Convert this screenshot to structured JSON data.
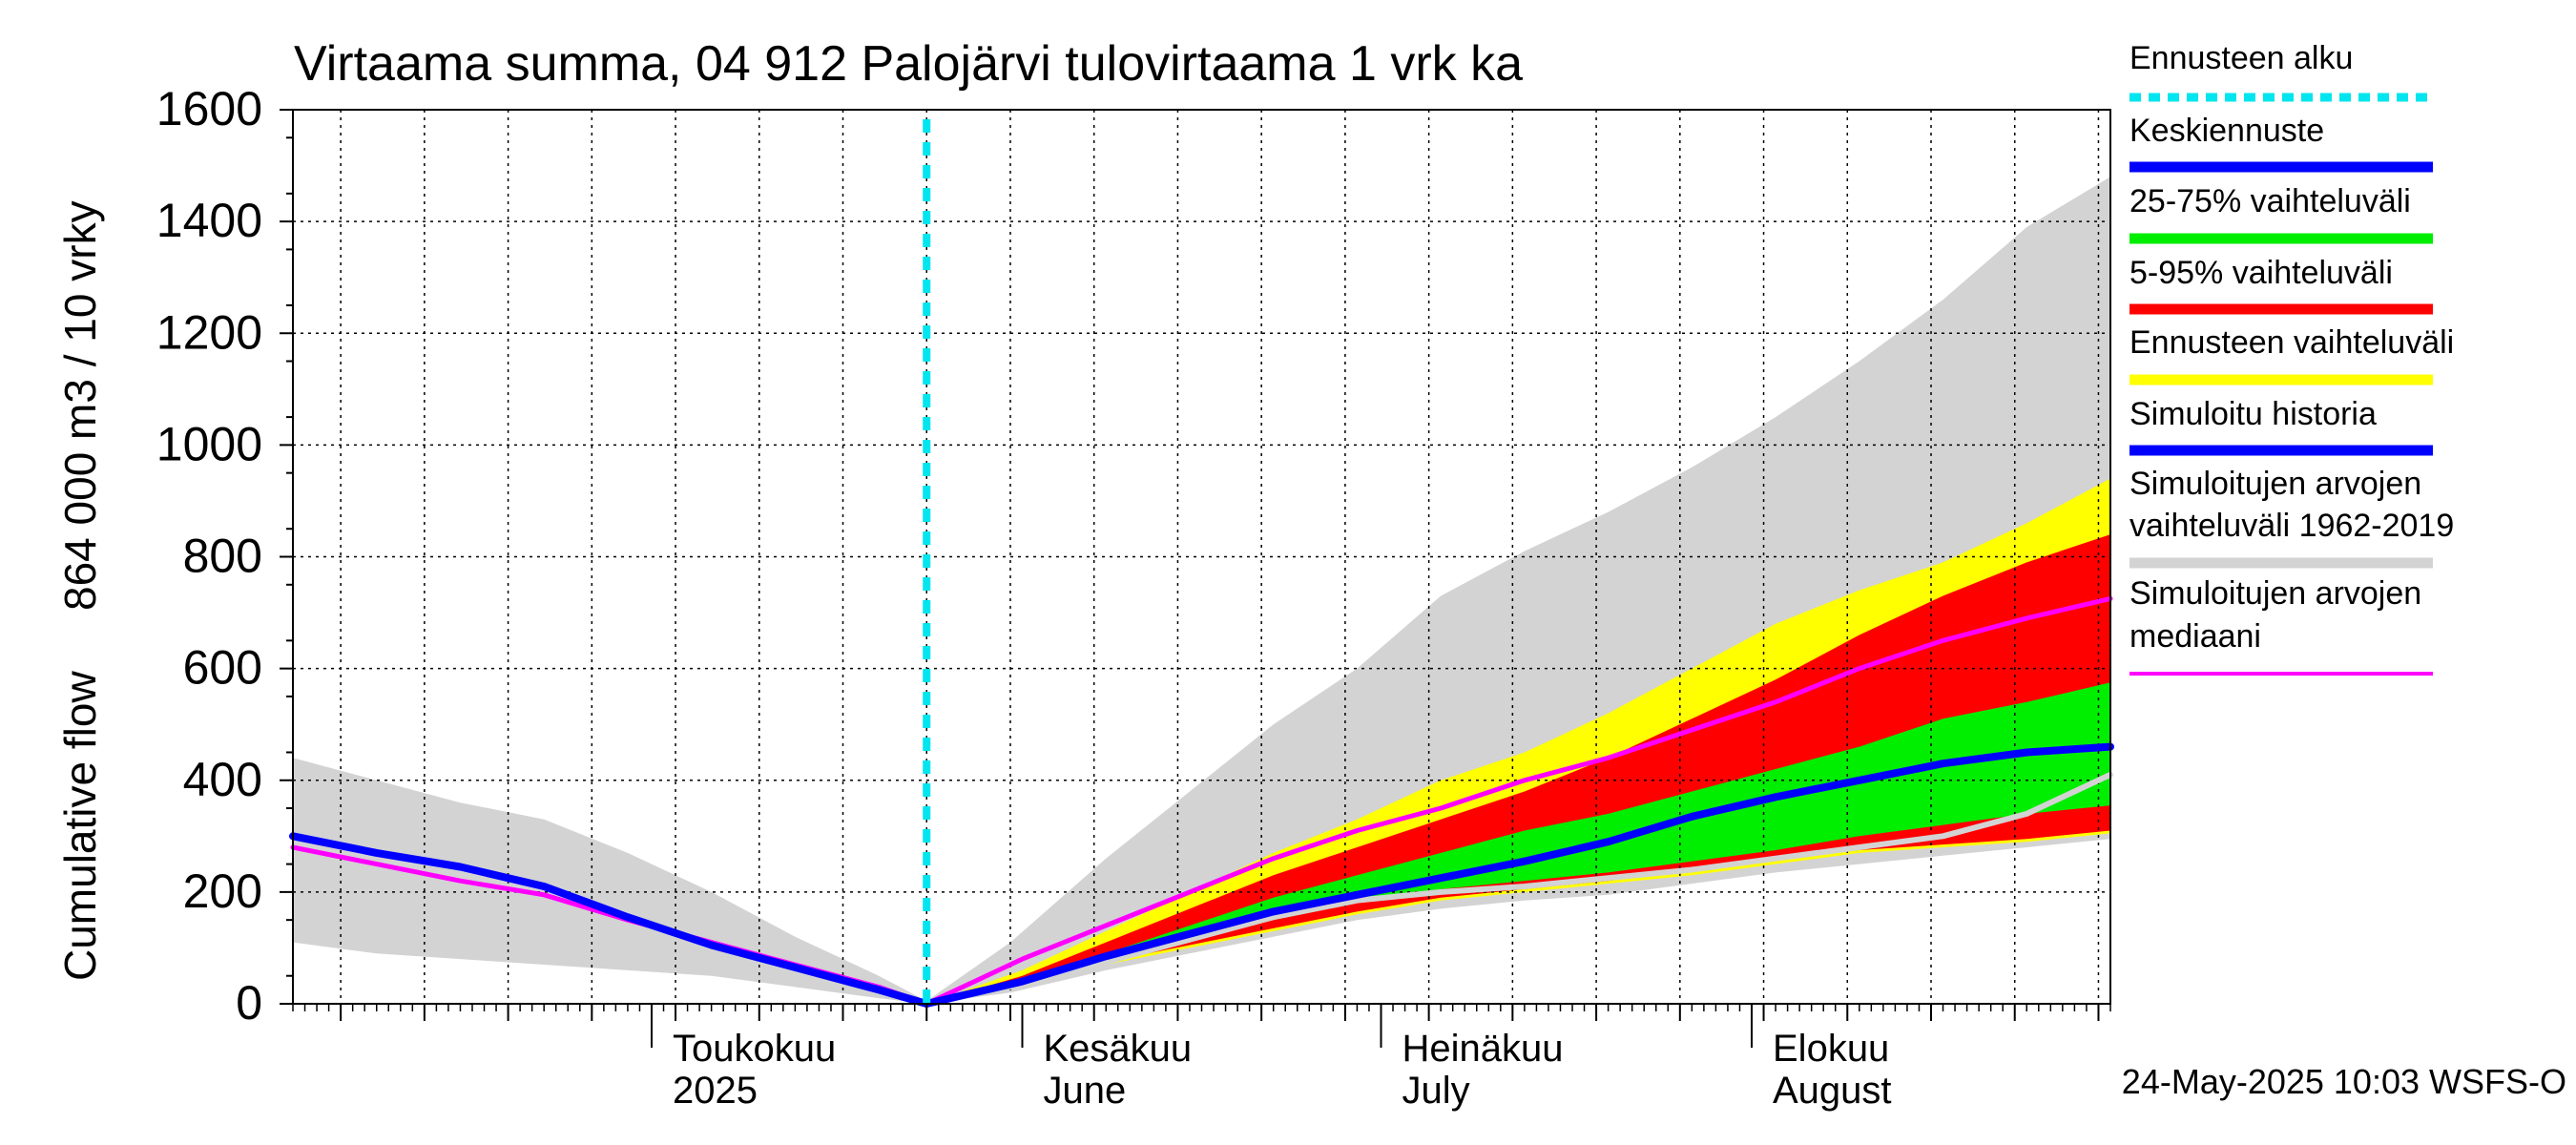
{
  "chart_data": {
    "type": "area",
    "title": "Virtaama summa, 04 912 Palojärvi tulovirtaama 1 vrk ka",
    "ylabel_fi": "Cumulative flow",
    "ylabel_unit": "864 000 m3 / 10 vrky",
    "ylim": [
      0,
      1600
    ],
    "y_ticks": [
      0,
      200,
      400,
      600,
      800,
      1000,
      1200,
      1400,
      1600
    ],
    "y_tick_labels": [
      "0",
      "200",
      "400",
      "600",
      "800",
      "1000",
      "1200",
      "1400",
      "1600"
    ],
    "x_range": [
      "2025-04-01",
      "2025-08-31"
    ],
    "grid": true,
    "forecast_start": "2025-05-24",
    "month_labels": [
      {
        "date": "2025-05-01",
        "line1": "Toukokuu",
        "line2": "2025"
      },
      {
        "date": "2025-06-01",
        "line1": "Kesäkuu",
        "line2": "June"
      },
      {
        "date": "2025-07-01",
        "line1": "Heinäkuu",
        "line2": "July"
      },
      {
        "date": "2025-08-01",
        "line1": "Elokuu",
        "line2": "August"
      }
    ],
    "legend_placement": "right",
    "legend": [
      {
        "label": "Ennusteen alku",
        "color": "#00e5ee",
        "style": "dotted"
      },
      {
        "label": "Keskiennuste",
        "color": "#0000ff",
        "style": "solid"
      },
      {
        "label": "25-75% vaihteluväli",
        "color": "#00ee00",
        "style": "solid"
      },
      {
        "label": "5-95% vaihteluväli",
        "color": "#ff0000",
        "style": "solid"
      },
      {
        "label": "Ennusteen vaihteluväli",
        "color": "#ffff00",
        "style": "solid"
      },
      {
        "label": "Simuloitu historia",
        "color": "#0000ff",
        "style": "solid"
      },
      {
        "label": "Simuloitujen arvojen vaihteluväli 1962-2019",
        "color": "#d3d3d3",
        "style": "solid"
      },
      {
        "label": "Simuloitujen arvojen mediaani",
        "color": "#ff00ff",
        "style": "solid"
      }
    ],
    "series": [
      {
        "name": "Simuloitujen arvojen vaihteluväli 1962-2019",
        "kind": "band",
        "color": "#d3d3d3",
        "upper": [
          [
            "2025-04-01",
            440
          ],
          [
            "2025-04-08",
            400
          ],
          [
            "2025-04-15",
            360
          ],
          [
            "2025-04-22",
            330
          ],
          [
            "2025-04-29",
            270
          ],
          [
            "2025-05-06",
            200
          ],
          [
            "2025-05-13",
            120
          ],
          [
            "2025-05-20",
            50
          ],
          [
            "2025-05-24",
            5
          ],
          [
            "2025-05-31",
            110
          ],
          [
            "2025-06-08",
            260
          ],
          [
            "2025-06-15",
            380
          ],
          [
            "2025-06-22",
            500
          ],
          [
            "2025-06-29",
            600
          ],
          [
            "2025-07-06",
            730
          ],
          [
            "2025-07-13",
            810
          ],
          [
            "2025-07-20",
            880
          ],
          [
            "2025-07-27",
            960
          ],
          [
            "2025-08-03",
            1050
          ],
          [
            "2025-08-10",
            1150
          ],
          [
            "2025-08-17",
            1260
          ],
          [
            "2025-08-24",
            1390
          ],
          [
            "2025-08-31",
            1480
          ]
        ],
        "lower": [
          [
            "2025-04-01",
            110
          ],
          [
            "2025-04-08",
            90
          ],
          [
            "2025-04-15",
            80
          ],
          [
            "2025-04-22",
            70
          ],
          [
            "2025-04-29",
            60
          ],
          [
            "2025-05-06",
            50
          ],
          [
            "2025-05-13",
            30
          ],
          [
            "2025-05-20",
            10
          ],
          [
            "2025-05-24",
            0
          ],
          [
            "2025-05-31",
            20
          ],
          [
            "2025-06-08",
            60
          ],
          [
            "2025-06-15",
            90
          ],
          [
            "2025-06-22",
            120
          ],
          [
            "2025-06-29",
            150
          ],
          [
            "2025-07-06",
            170
          ],
          [
            "2025-07-13",
            185
          ],
          [
            "2025-07-20",
            195
          ],
          [
            "2025-07-27",
            215
          ],
          [
            "2025-08-03",
            235
          ],
          [
            "2025-08-10",
            250
          ],
          [
            "2025-08-17",
            265
          ],
          [
            "2025-08-24",
            280
          ],
          [
            "2025-08-31",
            295
          ]
        ]
      },
      {
        "name": "Ennusteen vaihteluväli",
        "kind": "band",
        "color": "#ffff00",
        "upper": [
          [
            "2025-05-24",
            0
          ],
          [
            "2025-06-01",
            60
          ],
          [
            "2025-06-08",
            130
          ],
          [
            "2025-06-15",
            200
          ],
          [
            "2025-06-22",
            270
          ],
          [
            "2025-06-29",
            330
          ],
          [
            "2025-07-06",
            400
          ],
          [
            "2025-07-13",
            450
          ],
          [
            "2025-07-20",
            520
          ],
          [
            "2025-07-27",
            600
          ],
          [
            "2025-08-03",
            680
          ],
          [
            "2025-08-10",
            740
          ],
          [
            "2025-08-17",
            790
          ],
          [
            "2025-08-24",
            860
          ],
          [
            "2025-08-31",
            940
          ]
        ],
        "lower": [
          [
            "2025-05-24",
            0
          ],
          [
            "2025-06-01",
            30
          ],
          [
            "2025-06-08",
            70
          ],
          [
            "2025-06-15",
            100
          ],
          [
            "2025-06-22",
            130
          ],
          [
            "2025-06-29",
            160
          ],
          [
            "2025-07-06",
            185
          ],
          [
            "2025-07-13",
            200
          ],
          [
            "2025-07-20",
            215
          ],
          [
            "2025-07-27",
            230
          ],
          [
            "2025-08-03",
            250
          ],
          [
            "2025-08-10",
            270
          ],
          [
            "2025-08-17",
            280
          ],
          [
            "2025-08-24",
            290
          ],
          [
            "2025-08-31",
            305
          ]
        ]
      },
      {
        "name": "5-95% vaihteluväli",
        "kind": "band",
        "color": "#ff0000",
        "upper": [
          [
            "2025-05-24",
            0
          ],
          [
            "2025-06-01",
            50
          ],
          [
            "2025-06-08",
            110
          ],
          [
            "2025-06-15",
            170
          ],
          [
            "2025-06-22",
            230
          ],
          [
            "2025-06-29",
            280
          ],
          [
            "2025-07-06",
            330
          ],
          [
            "2025-07-13",
            380
          ],
          [
            "2025-07-20",
            440
          ],
          [
            "2025-07-27",
            510
          ],
          [
            "2025-08-03",
            580
          ],
          [
            "2025-08-10",
            660
          ],
          [
            "2025-08-17",
            730
          ],
          [
            "2025-08-24",
            790
          ],
          [
            "2025-08-31",
            840
          ]
        ],
        "lower": [
          [
            "2025-05-24",
            0
          ],
          [
            "2025-06-01",
            30
          ],
          [
            "2025-06-08",
            75
          ],
          [
            "2025-06-15",
            105
          ],
          [
            "2025-06-22",
            135
          ],
          [
            "2025-06-29",
            165
          ],
          [
            "2025-07-06",
            190
          ],
          [
            "2025-07-13",
            205
          ],
          [
            "2025-07-20",
            220
          ],
          [
            "2025-07-27",
            240
          ],
          [
            "2025-08-03",
            260
          ],
          [
            "2025-08-10",
            275
          ],
          [
            "2025-08-17",
            285
          ],
          [
            "2025-08-24",
            295
          ],
          [
            "2025-08-31",
            310
          ]
        ]
      },
      {
        "name": "25-75% vaihteluväli",
        "kind": "band",
        "color": "#00ee00",
        "upper": [
          [
            "2025-05-24",
            0
          ],
          [
            "2025-06-01",
            45
          ],
          [
            "2025-06-08",
            90
          ],
          [
            "2025-06-15",
            140
          ],
          [
            "2025-06-22",
            190
          ],
          [
            "2025-06-29",
            230
          ],
          [
            "2025-07-06",
            270
          ],
          [
            "2025-07-13",
            310
          ],
          [
            "2025-07-20",
            340
          ],
          [
            "2025-07-27",
            380
          ],
          [
            "2025-08-03",
            420
          ],
          [
            "2025-08-10",
            460
          ],
          [
            "2025-08-17",
            510
          ],
          [
            "2025-08-24",
            540
          ],
          [
            "2025-08-31",
            575
          ]
        ],
        "lower": [
          [
            "2025-05-24",
            0
          ],
          [
            "2025-06-01",
            35
          ],
          [
            "2025-06-08",
            80
          ],
          [
            "2025-06-15",
            115
          ],
          [
            "2025-06-22",
            150
          ],
          [
            "2025-06-29",
            180
          ],
          [
            "2025-07-06",
            205
          ],
          [
            "2025-07-13",
            220
          ],
          [
            "2025-07-20",
            235
          ],
          [
            "2025-07-27",
            255
          ],
          [
            "2025-08-03",
            275
          ],
          [
            "2025-08-10",
            300
          ],
          [
            "2025-08-17",
            320
          ],
          [
            "2025-08-24",
            340
          ],
          [
            "2025-08-31",
            355
          ]
        ]
      },
      {
        "name": "Simuloitujen arvojen mediaani",
        "kind": "line",
        "color": "#ff00ff",
        "width": 5,
        "points": [
          [
            "2025-04-01",
            280
          ],
          [
            "2025-04-08",
            250
          ],
          [
            "2025-04-15",
            220
          ],
          [
            "2025-04-22",
            195
          ],
          [
            "2025-04-29",
            150
          ],
          [
            "2025-05-06",
            110
          ],
          [
            "2025-05-13",
            70
          ],
          [
            "2025-05-20",
            30
          ],
          [
            "2025-05-24",
            0
          ],
          [
            "2025-05-28",
            40
          ],
          [
            "2025-06-01",
            80
          ],
          [
            "2025-06-08",
            140
          ],
          [
            "2025-06-15",
            200
          ],
          [
            "2025-06-22",
            260
          ],
          [
            "2025-06-29",
            310
          ],
          [
            "2025-07-06",
            350
          ],
          [
            "2025-07-13",
            400
          ],
          [
            "2025-07-20",
            440
          ],
          [
            "2025-07-27",
            490
          ],
          [
            "2025-08-03",
            540
          ],
          [
            "2025-08-10",
            600
          ],
          [
            "2025-08-17",
            650
          ],
          [
            "2025-08-24",
            690
          ],
          [
            "2025-08-31",
            725
          ]
        ]
      },
      {
        "name": "Simuloitu historia",
        "kind": "line",
        "color": "#d3d3d3",
        "width": 6,
        "points": [
          [
            "2025-05-24",
            0
          ],
          [
            "2025-06-01",
            35
          ],
          [
            "2025-06-08",
            75
          ],
          [
            "2025-06-15",
            115
          ],
          [
            "2025-06-22",
            155
          ],
          [
            "2025-06-29",
            185
          ],
          [
            "2025-07-06",
            200
          ],
          [
            "2025-07-13",
            210
          ],
          [
            "2025-07-20",
            225
          ],
          [
            "2025-07-27",
            240
          ],
          [
            "2025-08-03",
            260
          ],
          [
            "2025-08-10",
            280
          ],
          [
            "2025-08-17",
            300
          ],
          [
            "2025-08-24",
            340
          ],
          [
            "2025-08-31",
            410
          ]
        ]
      },
      {
        "name": "Keskiennuste",
        "kind": "line",
        "color": "#0000ff",
        "width": 8,
        "points": [
          [
            "2025-04-01",
            300
          ],
          [
            "2025-04-08",
            270
          ],
          [
            "2025-04-15",
            245
          ],
          [
            "2025-04-22",
            210
          ],
          [
            "2025-04-29",
            155
          ],
          [
            "2025-05-06",
            105
          ],
          [
            "2025-05-13",
            65
          ],
          [
            "2025-05-20",
            25
          ],
          [
            "2025-05-24",
            0
          ],
          [
            "2025-06-01",
            40
          ],
          [
            "2025-06-08",
            85
          ],
          [
            "2025-06-15",
            125
          ],
          [
            "2025-06-22",
            165
          ],
          [
            "2025-06-29",
            195
          ],
          [
            "2025-07-06",
            225
          ],
          [
            "2025-07-13",
            255
          ],
          [
            "2025-07-20",
            290
          ],
          [
            "2025-07-27",
            335
          ],
          [
            "2025-08-03",
            370
          ],
          [
            "2025-08-10",
            400
          ],
          [
            "2025-08-17",
            430
          ],
          [
            "2025-08-24",
            450
          ],
          [
            "2025-08-31",
            460
          ]
        ]
      }
    ]
  },
  "footer": {
    "timestamp": "24-May-2025 10:03 WSFS-O"
  }
}
